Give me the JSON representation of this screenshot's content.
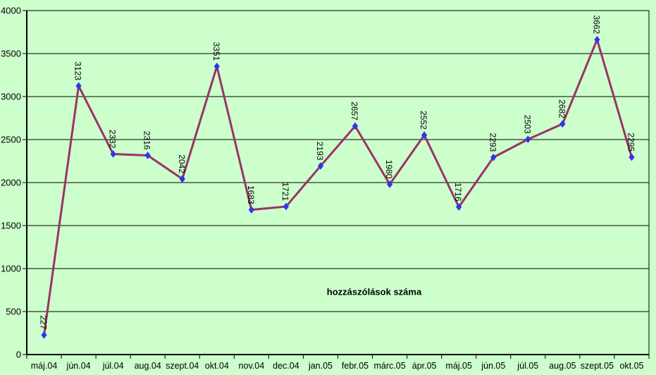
{
  "chart_data": {
    "type": "line",
    "title": "hozzászólások száma",
    "categories": [
      "máj.04",
      "jún.04",
      "júl.04",
      "aug.04",
      "szept.04",
      "okt.04",
      "nov.04",
      "dec.04",
      "jan.05",
      "febr.05",
      "márc.05",
      "ápr.05",
      "máj.05",
      "jún.05",
      "júl.05",
      "aug.05",
      "szept.05",
      "okt.05"
    ],
    "values": [
      227,
      3123,
      2332,
      2316,
      2042,
      3351,
      1683,
      1721,
      2193,
      2657,
      1980,
      2552,
      1716,
      2293,
      2503,
      2682,
      3662,
      2295
    ],
    "xlabel": "",
    "ylabel": "",
    "ylim": [
      0,
      4000
    ],
    "yticks": [
      0,
      500,
      1000,
      1500,
      2000,
      2500,
      3000,
      3500,
      4000
    ],
    "grid": "horizontal",
    "legend": "none",
    "marker": "diamond",
    "data_labels_rotation_deg": 90,
    "colors": {
      "background": "#ccffcc",
      "line": "#993366",
      "marker": "#3333ee",
      "grid": "#000000",
      "axis": "#000000",
      "text": "#000000"
    }
  }
}
